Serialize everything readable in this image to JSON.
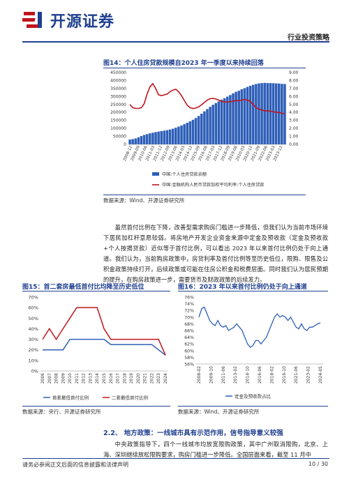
{
  "header": {
    "brand_name": "开源证券",
    "report_type": "行业投资策略"
  },
  "figure14": {
    "title": "图14：个人住房贷款规模自2023 年一季度以来持续回落",
    "source": "数据来源：Wind、开源证券研究所",
    "chart_data": {
      "type": "bar",
      "x_tick_labels": [
        "2008-12",
        "2009-09",
        "2010-06",
        "2011-03",
        "2011-12",
        "2012-09",
        "2013-06",
        "2014-03",
        "2014-12",
        "2015-09",
        "2016-06",
        "2017-03",
        "2017-12",
        "2018-09",
        "2019-06",
        "2020-03",
        "2020-12",
        "2021-09",
        "2022-06",
        "2023-03",
        "2023-12"
      ],
      "left_axis": {
        "ticks": [
          "0",
          "50000",
          "100000",
          "150000",
          "200000",
          "250000",
          "300000",
          "350000",
          "400000",
          "450000"
        ],
        "ylim": [
          0,
          450000
        ]
      },
      "right_axis": {
        "ticks": [
          "0.00",
          "1.00",
          "2.00",
          "3.00",
          "4.00",
          "5.00",
          "6.00",
          "7.00",
          "8.00",
          "9.00"
        ],
        "ylim": [
          0,
          9
        ]
      },
      "series": [
        {
          "name": "中国:个人住房贷款余额",
          "type": "bar",
          "color": "#2e5fb8",
          "values": [
            30000,
            33000,
            37000,
            44000,
            52000,
            59000,
            64000,
            69000,
            73000,
            77000,
            80000,
            83000,
            86000,
            89000,
            93000,
            98000,
            104000,
            111000,
            118000,
            126000,
            135000,
            144000,
            154000,
            165000,
            178000,
            192000,
            207000,
            221000,
            235000,
            248000,
            259000,
            270000,
            280000,
            289000,
            299000,
            309000,
            319000,
            329000,
            336000,
            345000,
            352000,
            360000,
            367000,
            373000,
            378000,
            382000,
            384000,
            385000,
            384000,
            384000,
            383000,
            382000,
            381000,
            379000,
            378000
          ]
        },
        {
          "name": "中国:金融机构人民币贷款加权平均利率:个人住房贷款",
          "type": "line",
          "color": "#c0141c",
          "values": [
            5.0,
            4.6,
            4.5,
            4.5,
            4.6,
            5.1,
            6.3,
            7.2,
            7.6,
            7.0,
            6.2,
            6.1,
            6.2,
            6.3,
            6.6,
            6.8,
            6.9,
            6.6,
            6.1,
            5.5,
            4.9,
            4.6,
            4.5,
            4.55,
            4.7,
            4.95,
            5.25,
            5.55,
            5.72,
            5.76,
            5.68,
            5.55,
            5.4,
            5.3,
            5.3,
            5.35,
            5.4,
            5.5,
            5.45,
            5.55,
            5.62,
            5.55,
            5.4,
            5.0,
            4.6,
            4.4,
            4.3,
            4.2,
            4.2,
            4.15,
            4.1,
            4.0,
            4.0,
            3.9,
            3.8
          ]
        }
      ]
    }
  },
  "body_paragraph": "虽然首付比例在下降，改善型需求购房门槛进一步降低，但我们认为当前市场环境下居民加杠杆意愿较弱。将房地产开发企业资金来源中定金及预收款（定金及预收款+个人按揭贷款）近似等于首付比例，可以看出 2023 年以来首付比例仍处于向上通道。我们认为，当前购房政策中，房贷利率及首付比例等至历史低位，限购、限售及公积金政策持续打开，后续政策或可能在住房公积金和税费层面。同时我们认为居民预期的提升，在购房政策进一步，需要货币及财政政策的后续发力。",
  "figure15": {
    "title": "图15：首二套房最低首付比均降至历史低位",
    "source": "数据来源：央行、开源证券研究所",
    "chart_data": {
      "type": "line",
      "x": [
        "2006",
        "2007",
        "2008",
        "2009",
        "2010",
        "2011",
        "2012",
        "2013",
        "2014",
        "2015",
        "2016",
        "2017",
        "2018",
        "2019",
        "2020",
        "2021",
        "2022",
        "2023",
        "2024"
      ],
      "y_ticks": [
        "0%",
        "10%",
        "20%",
        "30%",
        "40%",
        "50%",
        "60%",
        "70%"
      ],
      "ylim": [
        0,
        70
      ],
      "series": [
        {
          "name": "首套最低首付比例",
          "color": "#2e5fb8",
          "values": [
            20,
            20,
            20,
            20,
            30,
            30,
            30,
            30,
            30,
            30,
            25,
            25,
            25,
            25,
            25,
            25,
            25,
            20,
            15
          ]
        },
        {
          "name": "二套最低首付比例",
          "color": "#c0141c",
          "values": [
            30,
            40,
            30,
            40,
            50,
            60,
            60,
            60,
            60,
            40,
            30,
            30,
            30,
            30,
            30,
            30,
            30,
            30,
            15
          ]
        }
      ]
    }
  },
  "figure16": {
    "title": "图16：2023 年以来首付比例仍处于向上通道",
    "source": "数据来源：Wind、开源证券研究所",
    "chart_data": {
      "type": "line",
      "x_tick_labels": [
        "2008-02",
        "2009-10",
        "2011-06",
        "2013-02",
        "2014-10",
        "2016-06",
        "2018-02",
        "2019-10",
        "2021-06",
        "2023-02",
        "2024-05"
      ],
      "y_ticks": [
        "56%",
        "58%",
        "60%",
        "62%",
        "64%",
        "66%",
        "68%",
        "70%",
        "72%",
        "74%",
        "76%"
      ],
      "ylim": [
        56,
        76
      ],
      "series": [
        {
          "name": "定金及预收款占比",
          "color": "#2e5fb8",
          "values": [
            70,
            72.5,
            73,
            71,
            69,
            68,
            67.5,
            69,
            67.5,
            67,
            67.5,
            66,
            66.5,
            67,
            68,
            67,
            66,
            64,
            62,
            61,
            61.5,
            63,
            63,
            62,
            63,
            64,
            66,
            68,
            70,
            71,
            70,
            70.5,
            70,
            69,
            70,
            68.5,
            67,
            66.5,
            68,
            66.5,
            66,
            67,
            67,
            67.5,
            68,
            68.3
          ]
        }
      ]
    }
  },
  "section": {
    "heading": "2.2、 地方政策：一线城市具有示范作用，信号指导意义较强",
    "paragraph": "中央政策指导下，四个一线城市均放宽限购政策，其中广州取消限购，北京、上海、深圳继续放松限购要求，购房门槛进一步降低。全国层面来看，截至 11 月中"
  },
  "footer": {
    "disclaimer": "请务必参阅正文后面的信息披露和法律声明",
    "page_number": "10 / 30"
  },
  "colors": {
    "brand_blue": "#1f3f8f",
    "bar_blue": "#2e5fb8",
    "line_red": "#c0141c"
  }
}
